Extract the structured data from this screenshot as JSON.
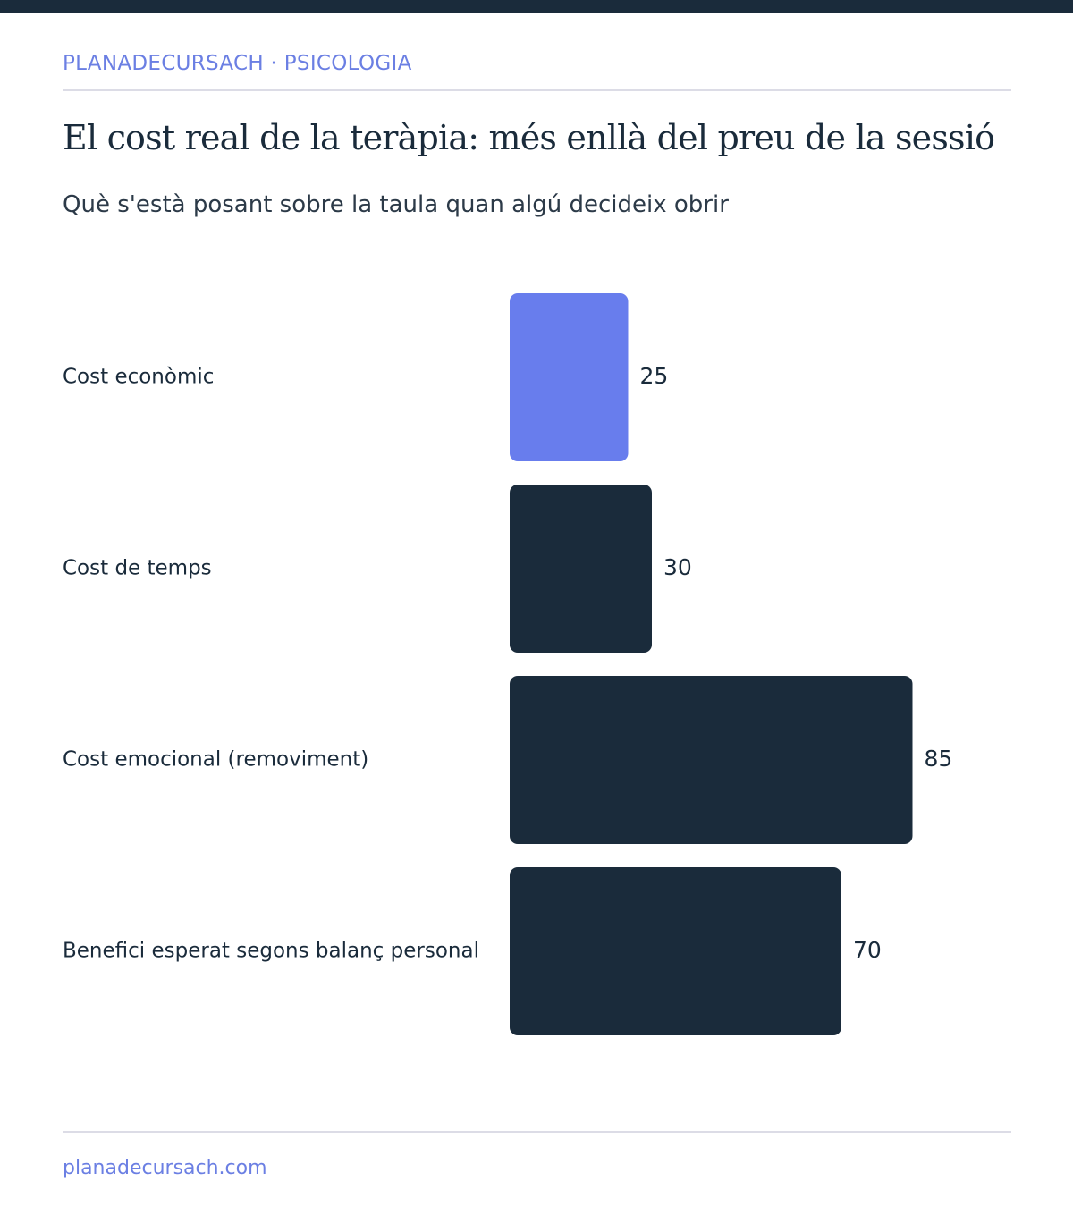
{
  "header": {
    "brand": "PLANADECURSACH · PSICOLOGIA",
    "title": "El cost real de la teràpia: més enllà del preu de la sessió",
    "subtitle": "Què s'està posant sobre la taula quan algú decideix obrir"
  },
  "footer": {
    "url": "planadecursach.com"
  },
  "colors": {
    "highlight": "#687ded",
    "bar": "#1a2b3b",
    "brand": "#6b7fe3"
  },
  "chart_data": {
    "type": "bar",
    "orientation": "horizontal",
    "categories": [
      "Cost econòmic",
      "Cost de temps",
      "Cost emocional (removiment)",
      "Benefici esperat segons balanç personal"
    ],
    "values": [
      25,
      30,
      85,
      70
    ],
    "highlighted_index": 0,
    "xlim": [
      0,
      100
    ],
    "grid": false,
    "legend": "none",
    "data_labels": true
  }
}
